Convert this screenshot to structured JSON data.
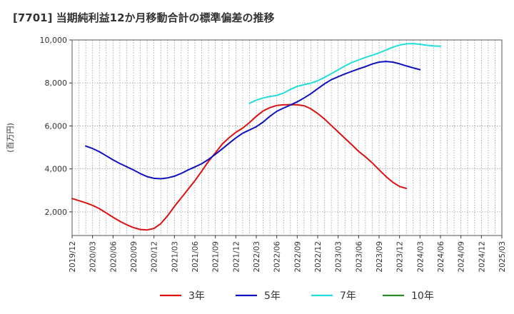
{
  "chart_data": {
    "type": "line",
    "title": "[7701]  当期純利益12か月移動合計の標準偏差の推移",
    "ylabel": "(百万円)",
    "xlabel": "",
    "ylim": [
      900,
      10000
    ],
    "yticks": [
      2000,
      4000,
      6000,
      8000,
      10000
    ],
    "ytick_labels": [
      "2,000",
      "4,000",
      "6,000",
      "8,000",
      "10,000"
    ],
    "x_ticks": [
      "2019/12",
      "2020/03",
      "2020/06",
      "2020/09",
      "2020/12",
      "2021/03",
      "2021/06",
      "2021/09",
      "2021/12",
      "2022/03",
      "2022/06",
      "2022/09",
      "2022/12",
      "2023/03",
      "2023/06",
      "2023/09",
      "2023/12",
      "2024/03",
      "2024/06",
      "2024/09",
      "2024/12",
      "2025/03"
    ],
    "grid": true,
    "legend_position": "bottom",
    "series": [
      {
        "name": "3年",
        "color": "#dd1111",
        "start": "2019/12",
        "values": [
          2620,
          2520,
          2420,
          2300,
          2150,
          1950,
          1750,
          1560,
          1400,
          1270,
          1180,
          1160,
          1230,
          1450,
          1820,
          2250,
          2650,
          3050,
          3450,
          3900,
          4350,
          4750,
          5150,
          5450,
          5700,
          5900,
          6150,
          6450,
          6700,
          6850,
          6950,
          6980,
          6990,
          6980,
          6940,
          6800,
          6580,
          6320,
          6020,
          5720,
          5420,
          5120,
          4820,
          4560,
          4280,
          3960,
          3650,
          3380,
          3180,
          3090
        ]
      },
      {
        "name": "5年",
        "color": "#1010c0",
        "start": "2020/02",
        "values": [
          5060,
          4950,
          4800,
          4610,
          4420,
          4250,
          4100,
          3950,
          3780,
          3640,
          3560,
          3540,
          3580,
          3660,
          3790,
          3950,
          4090,
          4240,
          4440,
          4680,
          4930,
          5190,
          5440,
          5660,
          5810,
          5960,
          6180,
          6450,
          6680,
          6830,
          6970,
          7120,
          7300,
          7500,
          7730,
          7960,
          8150,
          8290,
          8420,
          8540,
          8650,
          8760,
          8880,
          8970,
          9000,
          8970,
          8890,
          8790,
          8700,
          8620
        ]
      },
      {
        "name": "7年",
        "color": "#22dddd",
        "start": "2022/02",
        "values": [
          7050,
          7200,
          7300,
          7370,
          7420,
          7530,
          7700,
          7840,
          7920,
          7990,
          8100,
          8260,
          8430,
          8610,
          8790,
          8950,
          9070,
          9190,
          9290,
          9400,
          9530,
          9660,
          9760,
          9820,
          9830,
          9800,
          9750,
          9720,
          9710
        ]
      },
      {
        "name": "10年",
        "color": "#2a8a2a",
        "start": "",
        "values": []
      }
    ]
  }
}
